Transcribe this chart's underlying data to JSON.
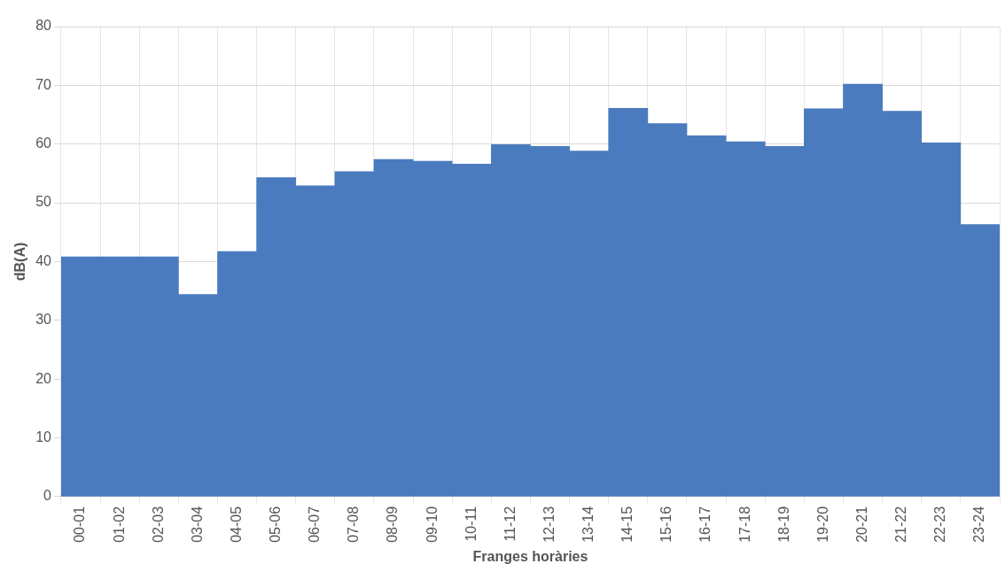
{
  "chart_data": {
    "type": "bar",
    "xlabel": "Franges horàries",
    "ylabel": "dB(A)",
    "categories": [
      "00-01",
      "01-02",
      "02-03",
      "03-04",
      "04-05",
      "05-06",
      "06-07",
      "07-08",
      "08-09",
      "09-10",
      "10-11",
      "11-12",
      "12-13",
      "13-14",
      "14-15",
      "15-16",
      "16-17",
      "17-18",
      "18-19",
      "19-20",
      "20-21",
      "21-22",
      "22-23",
      "23-24"
    ],
    "values": [
      40.8,
      40.8,
      40.8,
      34.4,
      41.7,
      54.3,
      52.9,
      55.3,
      57.4,
      57.1,
      56.6,
      59.9,
      59.6,
      58.8,
      66.1,
      63.5,
      61.4,
      60.4,
      59.6,
      66.0,
      70.2,
      65.6,
      60.2,
      46.3
    ],
    "color": "#4a7bbf",
    "ylim": [
      0,
      80
    ],
    "yticks": [
      0,
      10,
      20,
      30,
      40,
      50,
      60,
      70,
      80
    ],
    "grid": true
  }
}
